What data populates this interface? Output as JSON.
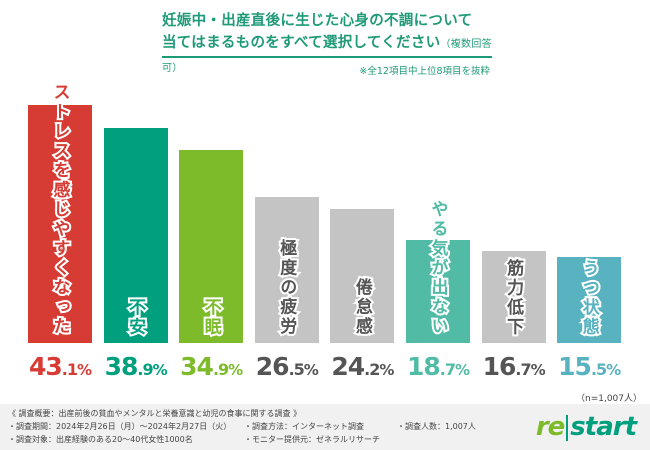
{
  "title": {
    "line1": "妊娠中・出産直後に生じた心身の不調について",
    "line2": "当てはまるものをすべて選択してください",
    "sub": "（複数回答可）",
    "note": "※全12項目中上位8項目を抜粋"
  },
  "chart_data": {
    "type": "bar",
    "title": "妊娠中・出産直後に生じた心身の不調について当てはまるものをすべて選択してください（複数回答可）",
    "categories": [
      "ストレスを感じやすくなった",
      "不安",
      "不眠",
      "極度の疲労",
      "倦怠感",
      "やる気が出ない",
      "筋力低下",
      "うつ状態"
    ],
    "values": [
      43.1,
      38.9,
      34.9,
      26.5,
      24.2,
      18.7,
      16.7,
      15.5
    ],
    "unit": "%",
    "colors": [
      "#d63b34",
      "#00a07f",
      "#7dbb2a",
      "#c4c4c4",
      "#c4c4c4",
      "#52bba6",
      "#c4c4c4",
      "#58b2c0"
    ],
    "label_colors": [
      "#d63b34",
      "#00a07f",
      "#7dbb2a",
      "#555555",
      "#555555",
      "#52bba6",
      "#555555",
      "#58b2c0"
    ],
    "ylim": [
      0,
      45
    ],
    "xlabel": "",
    "ylabel": ""
  },
  "sample": "（n=1,007人）",
  "footer": {
    "survey": "《 調査概要：出産前後の貧血やメンタルと栄養意識と幼児の食事に関する調査 》",
    "period": "・調査期間：2024年2月26日（月）～2024年2月27日（火）",
    "method": "・調査方法：インターネット調査",
    "count": "・調査人数：1,007人",
    "target": "・調査対象：出産経験のある20～40代女性1000名",
    "provider": "・モニター提供元：ゼネラルリサーチ"
  },
  "logo": {
    "re": "re",
    "start": "start"
  }
}
